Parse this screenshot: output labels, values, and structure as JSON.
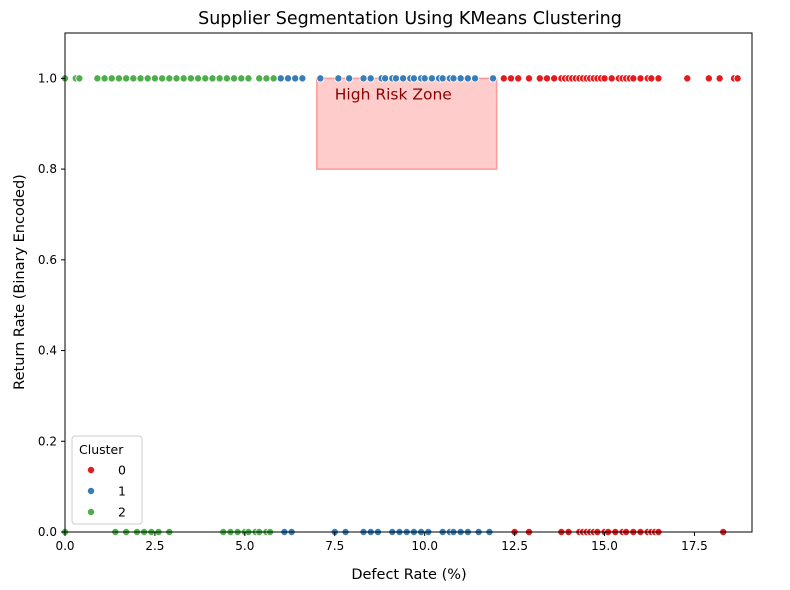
{
  "chart_data": {
    "type": "scatter",
    "title": "Supplier Segmentation Using KMeans Clustering",
    "xlabel": "Defect Rate (%)",
    "ylabel": "Return Rate (Binary Encoded)",
    "xlim": [
      0,
      19.1
    ],
    "ylim": [
      0,
      1.1
    ],
    "xticks": [
      "0.0",
      "2.5",
      "5.0",
      "7.5",
      "10.0",
      "12.5",
      "15.0",
      "17.5"
    ],
    "xtick_values": [
      0,
      2.5,
      5.0,
      7.5,
      10.0,
      12.5,
      15.0,
      17.5
    ],
    "yticks": [
      "0.0",
      "0.2",
      "0.4",
      "0.6",
      "0.8",
      "1.0"
    ],
    "ytick_values": [
      0,
      0.2,
      0.4,
      0.6,
      0.8,
      1.0
    ],
    "grid": false,
    "legend": {
      "title": "Cluster",
      "position": "lower-left",
      "entries": [
        "0",
        "1",
        "2"
      ]
    },
    "annotation": {
      "text": "High Risk Zone",
      "x_range": [
        7.0,
        12.0
      ],
      "y_range": [
        0.8,
        1.0
      ],
      "fill": "#ff9999"
    },
    "series": [
      {
        "name": "0",
        "color": "#e41a1c",
        "points": [
          [
            12.2,
            1
          ],
          [
            12.4,
            1
          ],
          [
            12.6,
            1
          ],
          [
            12.9,
            1
          ],
          [
            13.2,
            1
          ],
          [
            13.4,
            1
          ],
          [
            13.6,
            1
          ],
          [
            13.8,
            1
          ],
          [
            13.9,
            1
          ],
          [
            14.0,
            1
          ],
          [
            14.1,
            1
          ],
          [
            14.2,
            1
          ],
          [
            14.3,
            1
          ],
          [
            14.4,
            1
          ],
          [
            14.5,
            1
          ],
          [
            14.6,
            1
          ],
          [
            14.7,
            1
          ],
          [
            14.8,
            1
          ],
          [
            14.9,
            1
          ],
          [
            15.0,
            1
          ],
          [
            15.2,
            1
          ],
          [
            15.4,
            1
          ],
          [
            15.5,
            1
          ],
          [
            15.6,
            1
          ],
          [
            15.7,
            1
          ],
          [
            15.8,
            1
          ],
          [
            16.0,
            1
          ],
          [
            16.2,
            1
          ],
          [
            16.3,
            1
          ],
          [
            16.5,
            1
          ],
          [
            17.3,
            1
          ],
          [
            17.9,
            1
          ],
          [
            18.2,
            1
          ],
          [
            18.6,
            1
          ],
          [
            18.7,
            1
          ],
          [
            12.5,
            0
          ],
          [
            12.9,
            0
          ],
          [
            13.8,
            0
          ],
          [
            14.0,
            0
          ],
          [
            14.3,
            0
          ],
          [
            14.4,
            0
          ],
          [
            14.5,
            0
          ],
          [
            14.6,
            0
          ],
          [
            14.7,
            0
          ],
          [
            14.8,
            0
          ],
          [
            15.0,
            0
          ],
          [
            15.1,
            0
          ],
          [
            15.3,
            0
          ],
          [
            15.5,
            0
          ],
          [
            15.6,
            0
          ],
          [
            15.8,
            0
          ],
          [
            16.0,
            0
          ],
          [
            16.2,
            0
          ],
          [
            16.3,
            0
          ],
          [
            16.4,
            0
          ],
          [
            16.5,
            0
          ],
          [
            18.3,
            0
          ]
        ]
      },
      {
        "name": "1",
        "color": "#377eb8",
        "points": [
          [
            6.0,
            1
          ],
          [
            6.2,
            1
          ],
          [
            6.4,
            1
          ],
          [
            6.6,
            1
          ],
          [
            7.1,
            1
          ],
          [
            7.6,
            1
          ],
          [
            7.9,
            1
          ],
          [
            8.3,
            1
          ],
          [
            8.5,
            1
          ],
          [
            8.8,
            1
          ],
          [
            8.9,
            1
          ],
          [
            9.1,
            1
          ],
          [
            9.2,
            1
          ],
          [
            9.4,
            1
          ],
          [
            9.6,
            1
          ],
          [
            9.7,
            1
          ],
          [
            9.9,
            1
          ],
          [
            10.0,
            1
          ],
          [
            10.2,
            1
          ],
          [
            10.4,
            1
          ],
          [
            10.5,
            1
          ],
          [
            10.7,
            1
          ],
          [
            10.8,
            1
          ],
          [
            11.0,
            1
          ],
          [
            11.2,
            1
          ],
          [
            11.4,
            1
          ],
          [
            11.9,
            1
          ],
          [
            6.1,
            0
          ],
          [
            6.3,
            0
          ],
          [
            7.5,
            0
          ],
          [
            7.8,
            0
          ],
          [
            8.3,
            0
          ],
          [
            8.5,
            0
          ],
          [
            8.7,
            0
          ],
          [
            9.1,
            0
          ],
          [
            9.3,
            0
          ],
          [
            9.5,
            0
          ],
          [
            9.7,
            0
          ],
          [
            9.9,
            0
          ],
          [
            10.1,
            0
          ],
          [
            10.5,
            0
          ],
          [
            10.7,
            0
          ],
          [
            10.8,
            0
          ],
          [
            11.0,
            0
          ],
          [
            11.2,
            0
          ],
          [
            11.5,
            0
          ],
          [
            11.8,
            0
          ]
        ]
      },
      {
        "name": "2",
        "color": "#4daf4a",
        "points": [
          [
            0.0,
            1
          ],
          [
            0.3,
            1
          ],
          [
            0.4,
            1
          ],
          [
            0.9,
            1
          ],
          [
            1.1,
            1
          ],
          [
            1.3,
            1
          ],
          [
            1.5,
            1
          ],
          [
            1.7,
            1
          ],
          [
            1.9,
            1
          ],
          [
            2.1,
            1
          ],
          [
            2.3,
            1
          ],
          [
            2.5,
            1
          ],
          [
            2.7,
            1
          ],
          [
            2.9,
            1
          ],
          [
            3.1,
            1
          ],
          [
            3.3,
            1
          ],
          [
            3.5,
            1
          ],
          [
            3.7,
            1
          ],
          [
            3.9,
            1
          ],
          [
            4.1,
            1
          ],
          [
            4.3,
            1
          ],
          [
            4.5,
            1
          ],
          [
            4.7,
            1
          ],
          [
            4.9,
            1
          ],
          [
            5.1,
            1
          ],
          [
            5.4,
            1
          ],
          [
            5.6,
            1
          ],
          [
            5.8,
            1
          ],
          [
            0.0,
            0
          ],
          [
            1.4,
            0
          ],
          [
            1.7,
            0
          ],
          [
            2.0,
            0
          ],
          [
            2.2,
            0
          ],
          [
            2.4,
            0
          ],
          [
            2.6,
            0
          ],
          [
            2.9,
            0
          ],
          [
            4.4,
            0
          ],
          [
            4.6,
            0
          ],
          [
            4.8,
            0
          ],
          [
            5.0,
            0
          ],
          [
            5.1,
            0
          ],
          [
            5.3,
            0
          ],
          [
            5.4,
            0
          ],
          [
            5.6,
            0
          ],
          [
            5.7,
            0
          ]
        ]
      }
    ]
  }
}
